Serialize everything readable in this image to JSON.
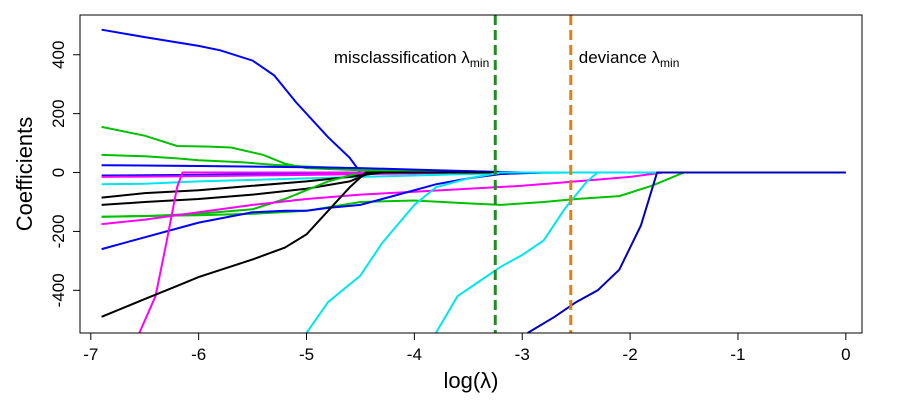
{
  "chart_data": {
    "type": "line",
    "xlabel": "log(λ)",
    "ylabel": "Coefficients",
    "xlim": [
      -7.1,
      0.15
    ],
    "ylim": [
      -545,
      535
    ],
    "xticks": [
      -7,
      -6,
      -5,
      -4,
      -3,
      -2,
      -1,
      0
    ],
    "xtick_labels": [
      "-7",
      "-6",
      "-5",
      "-4",
      "-3",
      "-2",
      "-1",
      "0"
    ],
    "yticks": [
      -400,
      -200,
      0,
      200,
      400
    ],
    "ytick_labels": [
      "-400",
      "-200",
      "0",
      "200",
      "400"
    ],
    "grid": false,
    "vlines": [
      {
        "x": -3.25,
        "color": "#228b22",
        "label_main": "misclassification λ",
        "label_sub": "min"
      },
      {
        "x": -2.55,
        "color": "#e08010",
        "label_main": "deviance λ",
        "label_sub": "min"
      }
    ],
    "series": [
      {
        "color": "#0000ff",
        "points": [
          [
            -6.9,
            485
          ],
          [
            -6.5,
            460
          ],
          [
            -6.0,
            430
          ],
          [
            -5.8,
            415
          ],
          [
            -5.5,
            380
          ],
          [
            -5.3,
            330
          ],
          [
            -5.1,
            240
          ],
          [
            -4.8,
            120
          ],
          [
            -4.6,
            50
          ],
          [
            -4.5,
            0
          ],
          [
            0,
            0
          ]
        ]
      },
      {
        "color": "#00c000",
        "points": [
          [
            -6.9,
            155
          ],
          [
            -6.5,
            125
          ],
          [
            -6.2,
            90
          ],
          [
            -5.9,
            88
          ],
          [
            -5.7,
            85
          ],
          [
            -5.4,
            60
          ],
          [
            -5.2,
            30
          ],
          [
            -5.0,
            15
          ],
          [
            -4.5,
            8
          ],
          [
            -4.2,
            5
          ],
          [
            -4.0,
            0
          ],
          [
            0,
            0
          ]
        ]
      },
      {
        "color": "#00c000",
        "points": [
          [
            -6.9,
            60
          ],
          [
            -6.5,
            55
          ],
          [
            -6.2,
            48
          ],
          [
            -6.0,
            42
          ],
          [
            -5.6,
            35
          ],
          [
            -5.3,
            26
          ],
          [
            -5.0,
            20
          ],
          [
            -4.6,
            15
          ],
          [
            -4.2,
            8
          ],
          [
            -3.8,
            3
          ],
          [
            -3.5,
            0
          ],
          [
            0,
            0
          ]
        ]
      },
      {
        "color": "#0000ff",
        "points": [
          [
            -6.9,
            25
          ],
          [
            -6.0,
            22
          ],
          [
            -5.0,
            18
          ],
          [
            -4.5,
            15
          ],
          [
            -4.0,
            10
          ],
          [
            -3.5,
            5
          ],
          [
            -3.0,
            0
          ],
          [
            0,
            0
          ]
        ]
      },
      {
        "color": "#0000ff",
        "points": [
          [
            -6.9,
            -10
          ],
          [
            -6.0,
            -8
          ],
          [
            -5.0,
            -5
          ],
          [
            -4.0,
            -2
          ],
          [
            -3.0,
            0
          ],
          [
            0,
            0
          ]
        ]
      },
      {
        "color": "#ff00ff",
        "points": [
          [
            -6.9,
            -15
          ],
          [
            -6.0,
            -12
          ],
          [
            -5.0,
            -8
          ],
          [
            -4.0,
            -3
          ],
          [
            -3.5,
            0
          ],
          [
            0,
            0
          ]
        ]
      },
      {
        "color": "#00e5ee",
        "points": [
          [
            -6.9,
            -40
          ],
          [
            -6.5,
            -38
          ],
          [
            -6.0,
            -30
          ],
          [
            -5.5,
            -25
          ],
          [
            -5.0,
            -20
          ],
          [
            -4.5,
            -15
          ],
          [
            -4.0,
            -10
          ],
          [
            -3.5,
            -5
          ],
          [
            -3.0,
            -2
          ],
          [
            -2.5,
            0
          ],
          [
            0,
            0
          ]
        ]
      },
      {
        "color": "#000000",
        "points": [
          [
            -6.9,
            -85
          ],
          [
            -6.5,
            -70
          ],
          [
            -6.0,
            -60
          ],
          [
            -5.5,
            -45
          ],
          [
            -5.0,
            -30
          ],
          [
            -4.6,
            -15
          ],
          [
            -4.3,
            0
          ],
          [
            0,
            0
          ]
        ]
      },
      {
        "color": "#000000",
        "points": [
          [
            -6.9,
            -110
          ],
          [
            -6.5,
            -100
          ],
          [
            -6.0,
            -90
          ],
          [
            -5.5,
            -75
          ],
          [
            -5.0,
            -55
          ],
          [
            -4.6,
            -30
          ],
          [
            -4.4,
            0
          ],
          [
            0,
            0
          ]
        ]
      },
      {
        "color": "#00c000",
        "points": [
          [
            -6.9,
            -150
          ],
          [
            -6.5,
            -148
          ],
          [
            -6.0,
            -140
          ],
          [
            -5.5,
            -125
          ],
          [
            -5.2,
            -90
          ],
          [
            -5.0,
            -60
          ],
          [
            -4.8,
            -30
          ],
          [
            -4.6,
            -10
          ],
          [
            -4.5,
            0
          ],
          [
            0,
            0
          ]
        ]
      },
      {
        "color": "#00c000",
        "points": [
          [
            -6.9,
            -150
          ],
          [
            -6.0,
            -145
          ],
          [
            -5.5,
            -140
          ],
          [
            -5.0,
            -130
          ],
          [
            -4.5,
            -100
          ],
          [
            -4.0,
            -95
          ],
          [
            -3.5,
            -105
          ],
          [
            -3.2,
            -110
          ],
          [
            -2.8,
            -100
          ],
          [
            -2.5,
            -90
          ],
          [
            -2.1,
            -80
          ],
          [
            -1.8,
            -45
          ],
          [
            -1.5,
            0
          ],
          [
            0,
            0
          ]
        ]
      },
      {
        "color": "#ff00ff",
        "points": [
          [
            -6.9,
            -175
          ],
          [
            -6.5,
            -160
          ],
          [
            -6.0,
            -135
          ],
          [
            -5.5,
            -110
          ],
          [
            -5.0,
            -90
          ],
          [
            -4.5,
            -75
          ],
          [
            -4.0,
            -65
          ],
          [
            -3.5,
            -55
          ],
          [
            -3.0,
            -45
          ],
          [
            -2.5,
            -30
          ],
          [
            -2.0,
            -15
          ],
          [
            -1.7,
            0
          ],
          [
            0,
            0
          ]
        ]
      },
      {
        "color": "#0000ff",
        "points": [
          [
            -6.9,
            -260
          ],
          [
            -6.5,
            -220
          ],
          [
            -6.2,
            -190
          ],
          [
            -6.0,
            -170
          ],
          [
            -5.5,
            -135
          ],
          [
            -5.2,
            -130
          ],
          [
            -5.0,
            -130
          ],
          [
            -4.8,
            -120
          ],
          [
            -4.5,
            -110
          ],
          [
            -4.2,
            -80
          ],
          [
            -3.8,
            -40
          ],
          [
            -3.5,
            -20
          ],
          [
            -3.2,
            -5
          ],
          [
            -2.8,
            0
          ],
          [
            0,
            0
          ]
        ]
      },
      {
        "color": "#ff00ff",
        "points": [
          [
            -6.55,
            -545
          ],
          [
            -6.4,
            -420
          ],
          [
            -6.3,
            -240
          ],
          [
            -6.2,
            -50
          ],
          [
            -6.15,
            0
          ],
          [
            0,
            0
          ]
        ]
      },
      {
        "color": "#000000",
        "points": [
          [
            -6.9,
            -490
          ],
          [
            -6.5,
            -430
          ],
          [
            -6.2,
            -385
          ],
          [
            -6.0,
            -355
          ],
          [
            -5.5,
            -295
          ],
          [
            -5.2,
            -255
          ],
          [
            -5.0,
            -210
          ],
          [
            -4.8,
            -130
          ],
          [
            -4.6,
            -50
          ],
          [
            -4.45,
            0
          ],
          [
            0,
            0
          ]
        ]
      },
      {
        "color": "#00e5ee",
        "points": [
          [
            -5.0,
            -545
          ],
          [
            -4.8,
            -440
          ],
          [
            -4.5,
            -350
          ],
          [
            -4.3,
            -240
          ],
          [
            -4.0,
            -110
          ],
          [
            -3.8,
            -50
          ],
          [
            -3.5,
            -20
          ],
          [
            -3.2,
            0
          ],
          [
            0,
            0
          ]
        ]
      },
      {
        "color": "#00e5ee",
        "points": [
          [
            -3.8,
            -545
          ],
          [
            -3.6,
            -420
          ],
          [
            -3.4,
            -370
          ],
          [
            -3.2,
            -320
          ],
          [
            -3.0,
            -280
          ],
          [
            -2.8,
            -230
          ],
          [
            -2.6,
            -120
          ],
          [
            -2.4,
            -30
          ],
          [
            -2.3,
            0
          ],
          [
            0,
            0
          ]
        ]
      },
      {
        "color": "#0000bb",
        "points": [
          [
            -2.95,
            -545
          ],
          [
            -2.7,
            -490
          ],
          [
            -2.5,
            -440
          ],
          [
            -2.3,
            -400
          ],
          [
            -2.1,
            -330
          ],
          [
            -1.9,
            -180
          ],
          [
            -1.8,
            -60
          ],
          [
            -1.75,
            0
          ],
          [
            0,
            0
          ]
        ]
      }
    ]
  }
}
